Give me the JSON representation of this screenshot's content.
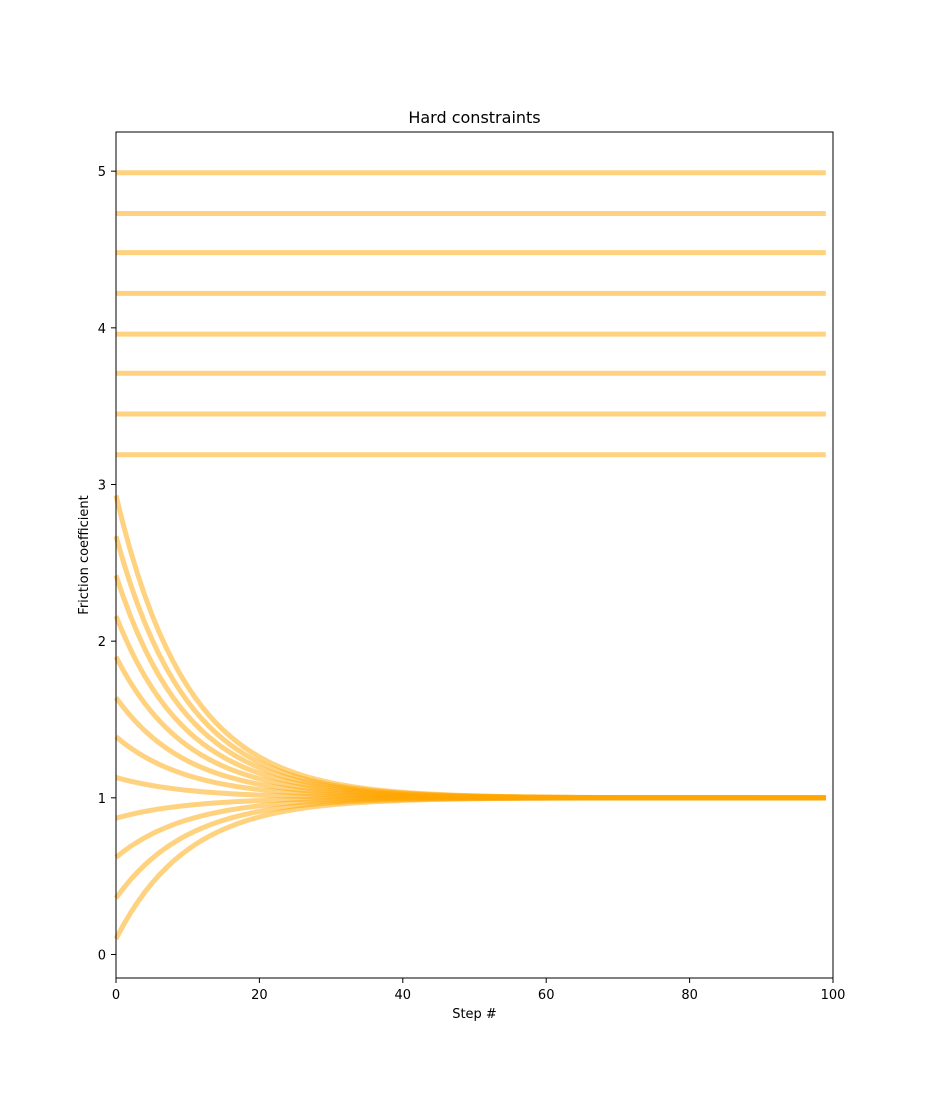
{
  "chart_data": {
    "type": "line",
    "title": "Hard constraints",
    "xlabel": "Step #",
    "ylabel": "Friction coefficient",
    "xlim": [
      0,
      100
    ],
    "ylim": [
      -0.15,
      5.25
    ],
    "x_ticks": [
      0,
      20,
      40,
      60,
      80,
      100
    ],
    "y_ticks": [
      0,
      1,
      2,
      3,
      4,
      5
    ],
    "x_tick_labels": [
      "0",
      "20",
      "40",
      "60",
      "80",
      "100"
    ],
    "y_tick_labels": [
      "0",
      "1",
      "2",
      "3",
      "4",
      "5"
    ],
    "grid": false,
    "legend": "none",
    "line_color": "#FFA500",
    "line_alpha": 0.5,
    "x_range": [
      0,
      99
    ],
    "converging_series": {
      "target": 1.0,
      "decay_rate": 0.1,
      "initial_values": [
        0.1,
        0.36,
        0.62,
        0.87,
        1.13,
        1.39,
        1.64,
        1.9,
        2.16,
        2.42,
        2.67,
        2.93
      ]
    },
    "constant_series": {
      "values": [
        3.19,
        3.45,
        3.71,
        3.96,
        4.22,
        4.48,
        4.73,
        4.99
      ]
    }
  }
}
